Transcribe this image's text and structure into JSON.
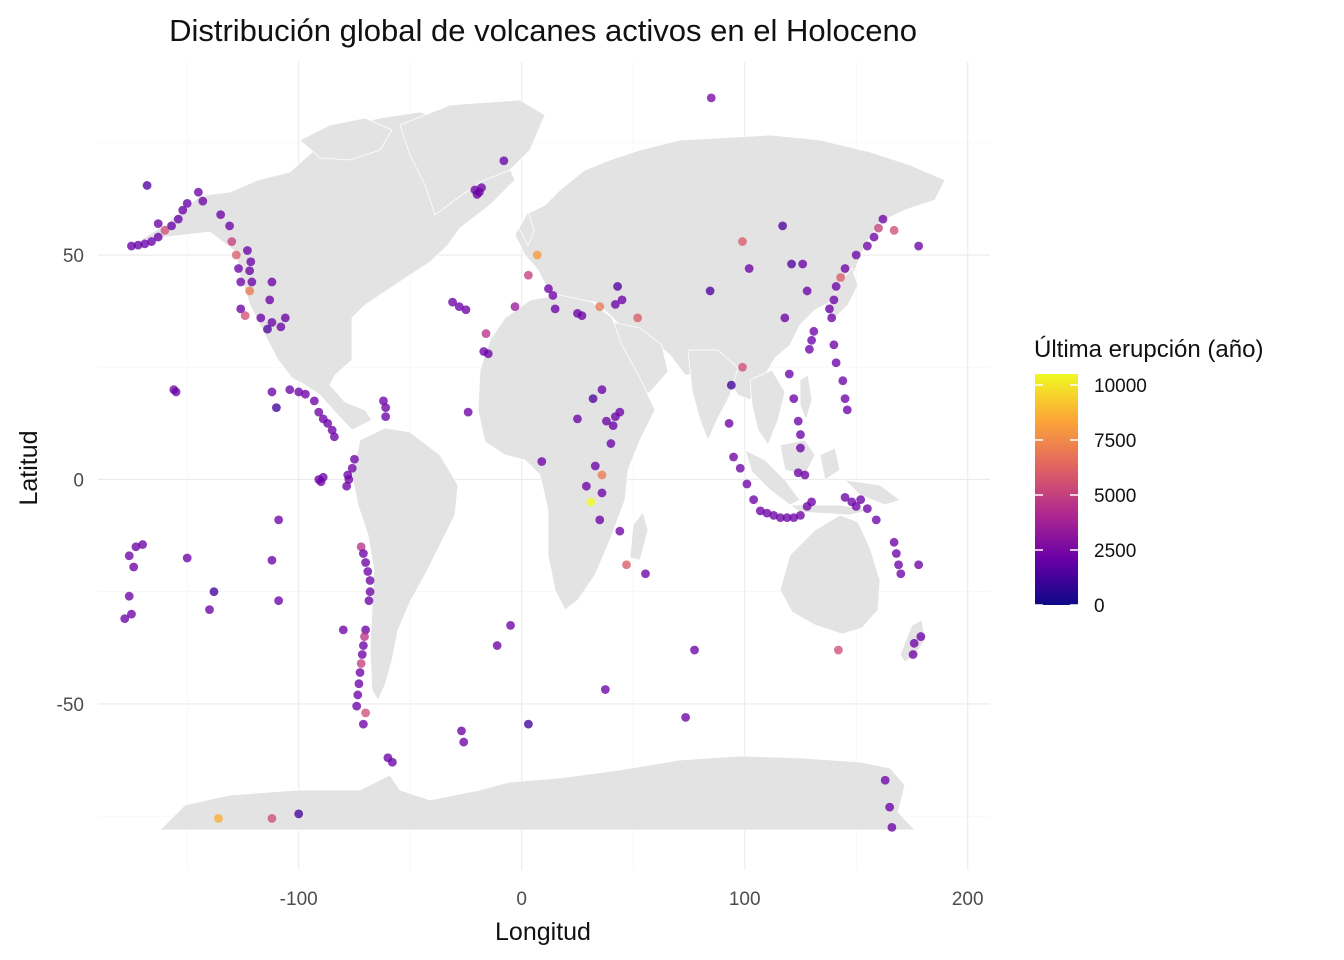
{
  "chart_data": {
    "type": "scatter",
    "title": "Distribución global de volcanes activos en el Holoceno",
    "xlabel": "Longitud",
    "ylabel": "Latitud",
    "xlim": [
      -190,
      210
    ],
    "ylim": [
      -87,
      93
    ],
    "x_ticks": [
      -100,
      0,
      100,
      200
    ],
    "x_tick_labels": [
      "-100",
      "0",
      "100",
      "200"
    ],
    "y_ticks": [
      -50,
      0,
      50
    ],
    "y_tick_labels": [
      "-50",
      "0",
      "50"
    ],
    "grid": true,
    "legend": {
      "title": "Última erupción (año)",
      "position": "right",
      "ticks": [
        0,
        2500,
        5000,
        7500,
        10000
      ],
      "tick_labels": [
        "0",
        "2500",
        "5000",
        "7500",
        "10000"
      ],
      "range": [
        0,
        10500
      ],
      "palette": [
        "#0d0887",
        "#6a00a8",
        "#b12a90",
        "#e16462",
        "#fca636",
        "#f0f921"
      ]
    },
    "background_map": "world land masses (light grey)",
    "points": [
      {
        "lon": -175,
        "lat": 52,
        "v": 2000
      },
      {
        "lon": -172,
        "lat": 52.2,
        "v": 2000
      },
      {
        "lon": -169,
        "lat": 52.5,
        "v": 2000
      },
      {
        "lon": -166,
        "lat": 53,
        "v": 2000
      },
      {
        "lon": -163,
        "lat": 54,
        "v": 2000
      },
      {
        "lon": -160,
        "lat": 55.5,
        "v": 5500
      },
      {
        "lon": -157,
        "lat": 56.5,
        "v": 2000
      },
      {
        "lon": -154,
        "lat": 58,
        "v": 2000
      },
      {
        "lon": -152,
        "lat": 60,
        "v": 2000
      },
      {
        "lon": -150,
        "lat": 61.5,
        "v": 2000
      },
      {
        "lon": -168,
        "lat": 65.5,
        "v": 1500
      },
      {
        "lon": -163,
        "lat": 57,
        "v": 2200
      },
      {
        "lon": -145,
        "lat": 64,
        "v": 2200
      },
      {
        "lon": -143,
        "lat": 62,
        "v": 2200
      },
      {
        "lon": -135,
        "lat": 59,
        "v": 2200
      },
      {
        "lon": -131,
        "lat": 56.5,
        "v": 2200
      },
      {
        "lon": -130,
        "lat": 53,
        "v": 5000
      },
      {
        "lon": -128,
        "lat": 50,
        "v": 6000
      },
      {
        "lon": -127,
        "lat": 47,
        "v": 2200
      },
      {
        "lon": -126,
        "lat": 44,
        "v": 2200
      },
      {
        "lon": -122,
        "lat": 42,
        "v": 7000
      },
      {
        "lon": -121,
        "lat": 44,
        "v": 2200
      },
      {
        "lon": -122,
        "lat": 46.5,
        "v": 2200
      },
      {
        "lon": -121.5,
        "lat": 48.5,
        "v": 2200
      },
      {
        "lon": -123,
        "lat": 51,
        "v": 2200
      },
      {
        "lon": -126,
        "lat": 38,
        "v": 2200
      },
      {
        "lon": -124,
        "lat": 36.5,
        "v": 5500
      },
      {
        "lon": -117,
        "lat": 36,
        "v": 2200
      },
      {
        "lon": -112,
        "lat": 35,
        "v": 2200
      },
      {
        "lon": -108,
        "lat": 34,
        "v": 2200
      },
      {
        "lon": -112,
        "lat": 44,
        "v": 2200
      },
      {
        "lon": -113,
        "lat": 40,
        "v": 2200
      },
      {
        "lon": -106,
        "lat": 36,
        "v": 2200
      },
      {
        "lon": -114,
        "lat": 33.5,
        "v": 1500
      },
      {
        "lon": -156,
        "lat": 20,
        "v": 2200
      },
      {
        "lon": -155,
        "lat": 19.5,
        "v": 2200
      },
      {
        "lon": -112,
        "lat": 19.5,
        "v": 2200
      },
      {
        "lon": -110,
        "lat": 16,
        "v": 1200
      },
      {
        "lon": -104,
        "lat": 20,
        "v": 2200
      },
      {
        "lon": -100,
        "lat": 19.5,
        "v": 2200
      },
      {
        "lon": -97,
        "lat": 19,
        "v": 2200
      },
      {
        "lon": -93,
        "lat": 17.5,
        "v": 2200
      },
      {
        "lon": -91,
        "lat": 15,
        "v": 2200
      },
      {
        "lon": -89,
        "lat": 13.5,
        "v": 2200
      },
      {
        "lon": -87,
        "lat": 12.5,
        "v": 2200
      },
      {
        "lon": -85,
        "lat": 11,
        "v": 2200
      },
      {
        "lon": -84,
        "lat": 9.5,
        "v": 2200
      },
      {
        "lon": -91,
        "lat": 0,
        "v": 2200
      },
      {
        "lon": -90,
        "lat": -0.5,
        "v": 2200
      },
      {
        "lon": -89,
        "lat": 0.5,
        "v": 2200
      },
      {
        "lon": -78,
        "lat": 1,
        "v": 2200
      },
      {
        "lon": -77.5,
        "lat": 0,
        "v": 2200
      },
      {
        "lon": -78.5,
        "lat": -1.5,
        "v": 2200
      },
      {
        "lon": -75,
        "lat": 4.5,
        "v": 2200
      },
      {
        "lon": -76,
        "lat": 2.5,
        "v": 2200
      },
      {
        "lon": -72,
        "lat": -15,
        "v": 4500
      },
      {
        "lon": -71,
        "lat": -16.5,
        "v": 2200
      },
      {
        "lon": -70,
        "lat": -18.5,
        "v": 2200
      },
      {
        "lon": -69,
        "lat": -20.5,
        "v": 2200
      },
      {
        "lon": -68,
        "lat": -22.5,
        "v": 2200
      },
      {
        "lon": -68,
        "lat": -25,
        "v": 2200
      },
      {
        "lon": -68.5,
        "lat": -27,
        "v": 2200
      },
      {
        "lon": -70,
        "lat": -33.5,
        "v": 2200
      },
      {
        "lon": -70.5,
        "lat": -35,
        "v": 4500
      },
      {
        "lon": -71,
        "lat": -37,
        "v": 2200
      },
      {
        "lon": -71.5,
        "lat": -39,
        "v": 2200
      },
      {
        "lon": -72,
        "lat": -41,
        "v": 5000
      },
      {
        "lon": -72.5,
        "lat": -43,
        "v": 2200
      },
      {
        "lon": -73,
        "lat": -45.5,
        "v": 2200
      },
      {
        "lon": -73.5,
        "lat": -48,
        "v": 2200
      },
      {
        "lon": -74,
        "lat": -50.5,
        "v": 2200
      },
      {
        "lon": -70,
        "lat": -52,
        "v": 5500
      },
      {
        "lon": -71,
        "lat": -54.5,
        "v": 2200
      },
      {
        "lon": -61,
        "lat": 16,
        "v": 2200
      },
      {
        "lon": -62,
        "lat": 17.5,
        "v": 2200
      },
      {
        "lon": -61,
        "lat": 14,
        "v": 2200
      },
      {
        "lon": -176,
        "lat": -17,
        "v": 2200
      },
      {
        "lon": -174,
        "lat": -19.5,
        "v": 2200
      },
      {
        "lon": -173,
        "lat": -15,
        "v": 2200
      },
      {
        "lon": -170,
        "lat": -14.5,
        "v": 2200
      },
      {
        "lon": -175,
        "lat": -30,
        "v": 2200
      },
      {
        "lon": -178,
        "lat": -31,
        "v": 2200
      },
      {
        "lon": -176,
        "lat": -26,
        "v": 2200
      },
      {
        "lon": -150,
        "lat": -17.5,
        "v": 2200
      },
      {
        "lon": -138,
        "lat": -25,
        "v": 1200
      },
      {
        "lon": -140,
        "lat": -29,
        "v": 2200
      },
      {
        "lon": -112,
        "lat": -18,
        "v": 2200
      },
      {
        "lon": -109,
        "lat": -9,
        "v": 2200
      },
      {
        "lon": -109,
        "lat": -27,
        "v": 2200
      },
      {
        "lon": -80,
        "lat": -33.5,
        "v": 2200
      },
      {
        "lon": -58,
        "lat": -63,
        "v": 2200
      },
      {
        "lon": -60,
        "lat": -62,
        "v": 2200
      },
      {
        "lon": -27,
        "lat": -56,
        "v": 2200
      },
      {
        "lon": -26,
        "lat": -58.5,
        "v": 2200
      },
      {
        "lon": -11,
        "lat": -37,
        "v": 2200
      },
      {
        "lon": -5,
        "lat": -32.5,
        "v": 2200
      },
      {
        "lon": 3,
        "lat": -54.5,
        "v": 1200
      },
      {
        "lon": -136,
        "lat": -75.5,
        "v": 8500
      },
      {
        "lon": -112,
        "lat": -75.5,
        "v": 5500
      },
      {
        "lon": -100,
        "lat": -74.5,
        "v": 1200
      },
      {
        "lon": -19,
        "lat": 64,
        "v": 2200
      },
      {
        "lon": -18,
        "lat": 65,
        "v": 2200
      },
      {
        "lon": -21,
        "lat": 64.5,
        "v": 2200
      },
      {
        "lon": -20,
        "lat": 63.5,
        "v": 2200
      },
      {
        "lon": -8,
        "lat": 71,
        "v": 2200
      },
      {
        "lon": -28,
        "lat": 38.5,
        "v": 2200
      },
      {
        "lon": -31,
        "lat": 39.5,
        "v": 2200
      },
      {
        "lon": -25,
        "lat": 37.8,
        "v": 2200
      },
      {
        "lon": -17,
        "lat": 28.5,
        "v": 2200
      },
      {
        "lon": -15,
        "lat": 28,
        "v": 2200
      },
      {
        "lon": -16,
        "lat": 32.5,
        "v": 4500
      },
      {
        "lon": -24,
        "lat": 15,
        "v": 2200
      },
      {
        "lon": 7,
        "lat": 50,
        "v": 8000
      },
      {
        "lon": 3,
        "lat": 45.5,
        "v": 5000
      },
      {
        "lon": -3,
        "lat": 38.5,
        "v": 3500
      },
      {
        "lon": 14,
        "lat": 41,
        "v": 2200
      },
      {
        "lon": 15,
        "lat": 38,
        "v": 2200
      },
      {
        "lon": 12,
        "lat": 42.5,
        "v": 2200
      },
      {
        "lon": 25,
        "lat": 37,
        "v": 2200
      },
      {
        "lon": 27,
        "lat": 36.5,
        "v": 2200
      },
      {
        "lon": 35,
        "lat": 38.5,
        "v": 7000
      },
      {
        "lon": 42,
        "lat": 39,
        "v": 2200
      },
      {
        "lon": 43,
        "lat": 43,
        "v": 1500
      },
      {
        "lon": 45,
        "lat": 40,
        "v": 2200
      },
      {
        "lon": 52,
        "lat": 36,
        "v": 6000
      },
      {
        "lon": 42,
        "lat": 14,
        "v": 2200
      },
      {
        "lon": 41,
        "lat": 12,
        "v": 2200
      },
      {
        "lon": 40,
        "lat": 8,
        "v": 2200
      },
      {
        "lon": 38,
        "lat": 13,
        "v": 2200
      },
      {
        "lon": 44,
        "lat": 15,
        "v": 2200
      },
      {
        "lon": 36,
        "lat": 20,
        "v": 2200
      },
      {
        "lon": 32,
        "lat": 18,
        "v": 1500
      },
      {
        "lon": 25,
        "lat": 13.5,
        "v": 2200
      },
      {
        "lon": 9,
        "lat": 4,
        "v": 2200
      },
      {
        "lon": 29,
        "lat": -1.5,
        "v": 2200
      },
      {
        "lon": 31,
        "lat": -5,
        "v": 10500
      },
      {
        "lon": 36,
        "lat": -3,
        "v": 2200
      },
      {
        "lon": 36,
        "lat": 1,
        "v": 7000
      },
      {
        "lon": 35,
        "lat": -9,
        "v": 2200
      },
      {
        "lon": 47,
        "lat": -19,
        "v": 6000
      },
      {
        "lon": 55.5,
        "lat": -21,
        "v": 2200
      },
      {
        "lon": 44,
        "lat": -11.5,
        "v": 2200
      },
      {
        "lon": 37.5,
        "lat": -46.8,
        "v": 2200
      },
      {
        "lon": 77.5,
        "lat": -38,
        "v": 2200
      },
      {
        "lon": 73.5,
        "lat": -53,
        "v": 2200
      },
      {
        "lon": 99,
        "lat": 53,
        "v": 6000
      },
      {
        "lon": 102,
        "lat": 47,
        "v": 2200
      },
      {
        "lon": 117,
        "lat": 56.5,
        "v": 1500
      },
      {
        "lon": 121,
        "lat": 48,
        "v": 1500
      },
      {
        "lon": 126,
        "lat": 48,
        "v": 2200
      },
      {
        "lon": 128,
        "lat": 42,
        "v": 2200
      },
      {
        "lon": 84.5,
        "lat": 42,
        "v": 1500
      },
      {
        "lon": 99,
        "lat": 25,
        "v": 5500
      },
      {
        "lon": 94,
        "lat": 21,
        "v": 1200
      },
      {
        "lon": 93,
        "lat": 12.5,
        "v": 2200
      },
      {
        "lon": 120,
        "lat": 23.5,
        "v": 2200
      },
      {
        "lon": 122,
        "lat": 18,
        "v": 2200
      },
      {
        "lon": 124,
        "lat": 13,
        "v": 2200
      },
      {
        "lon": 125,
        "lat": 10,
        "v": 2200
      },
      {
        "lon": 125,
        "lat": 7,
        "v": 2200
      },
      {
        "lon": 127,
        "lat": 1,
        "v": 2200
      },
      {
        "lon": 124,
        "lat": 1.5,
        "v": 2200
      },
      {
        "lon": 95,
        "lat": 5,
        "v": 2200
      },
      {
        "lon": 98,
        "lat": 2.5,
        "v": 2200
      },
      {
        "lon": 101,
        "lat": -1,
        "v": 2200
      },
      {
        "lon": 104,
        "lat": -4.5,
        "v": 2200
      },
      {
        "lon": 107,
        "lat": -7,
        "v": 2200
      },
      {
        "lon": 110,
        "lat": -7.5,
        "v": 2200
      },
      {
        "lon": 113,
        "lat": -8,
        "v": 2200
      },
      {
        "lon": 116,
        "lat": -8.5,
        "v": 2200
      },
      {
        "lon": 119,
        "lat": -8.5,
        "v": 2200
      },
      {
        "lon": 122,
        "lat": -8.5,
        "v": 2200
      },
      {
        "lon": 125,
        "lat": -8,
        "v": 2200
      },
      {
        "lon": 128,
        "lat": -6,
        "v": 2200
      },
      {
        "lon": 130,
        "lat": -5,
        "v": 2200
      },
      {
        "lon": 141,
        "lat": 43,
        "v": 2200
      },
      {
        "lon": 143,
        "lat": 45,
        "v": 6000
      },
      {
        "lon": 145,
        "lat": 47,
        "v": 2200
      },
      {
        "lon": 150,
        "lat": 50,
        "v": 2200
      },
      {
        "lon": 155,
        "lat": 52,
        "v": 2200
      },
      {
        "lon": 158,
        "lat": 54,
        "v": 2200
      },
      {
        "lon": 160,
        "lat": 56,
        "v": 5000
      },
      {
        "lon": 162,
        "lat": 58,
        "v": 2200
      },
      {
        "lon": 167,
        "lat": 55.5,
        "v": 5500
      },
      {
        "lon": 178,
        "lat": 52,
        "v": 2200
      },
      {
        "lon": 139,
        "lat": 36,
        "v": 2200
      },
      {
        "lon": 138,
        "lat": 38,
        "v": 2200
      },
      {
        "lon": 140,
        "lat": 40,
        "v": 2200
      },
      {
        "lon": 131,
        "lat": 33,
        "v": 2200
      },
      {
        "lon": 130,
        "lat": 31,
        "v": 2200
      },
      {
        "lon": 129,
        "lat": 29,
        "v": 2200
      },
      {
        "lon": 140,
        "lat": 30,
        "v": 2200
      },
      {
        "lon": 141,
        "lat": 26,
        "v": 2200
      },
      {
        "lon": 144,
        "lat": 22,
        "v": 2200
      },
      {
        "lon": 145,
        "lat": 18,
        "v": 2200
      },
      {
        "lon": 146,
        "lat": 15.5,
        "v": 2200
      },
      {
        "lon": 145,
        "lat": -4,
        "v": 2200
      },
      {
        "lon": 148,
        "lat": -5,
        "v": 2200
      },
      {
        "lon": 150,
        "lat": -6,
        "v": 2200
      },
      {
        "lon": 152,
        "lat": -4.5,
        "v": 2200
      },
      {
        "lon": 155,
        "lat": -6.5,
        "v": 2200
      },
      {
        "lon": 159,
        "lat": -9,
        "v": 2200
      },
      {
        "lon": 167,
        "lat": -14,
        "v": 2200
      },
      {
        "lon": 168,
        "lat": -16.5,
        "v": 2200
      },
      {
        "lon": 169,
        "lat": -19,
        "v": 2200
      },
      {
        "lon": 170,
        "lat": -21,
        "v": 2200
      },
      {
        "lon": 178,
        "lat": -19,
        "v": 2200
      },
      {
        "lon": 176,
        "lat": -36.5,
        "v": 2200
      },
      {
        "lon": 175.5,
        "lat": -39,
        "v": 2200
      },
      {
        "lon": 179,
        "lat": -35,
        "v": 2200
      },
      {
        "lon": 142,
        "lat": -38,
        "v": 5500
      },
      {
        "lon": 163,
        "lat": -67,
        "v": 2200
      },
      {
        "lon": 165,
        "lat": -73,
        "v": 2200
      },
      {
        "lon": 166,
        "lat": -77.5,
        "v": 2200
      },
      {
        "lon": 85,
        "lat": 85,
        "v": 2500
      },
      {
        "lon": 118,
        "lat": 36,
        "v": 2200
      },
      {
        "lon": 33,
        "lat": 3,
        "v": 2200
      }
    ]
  }
}
